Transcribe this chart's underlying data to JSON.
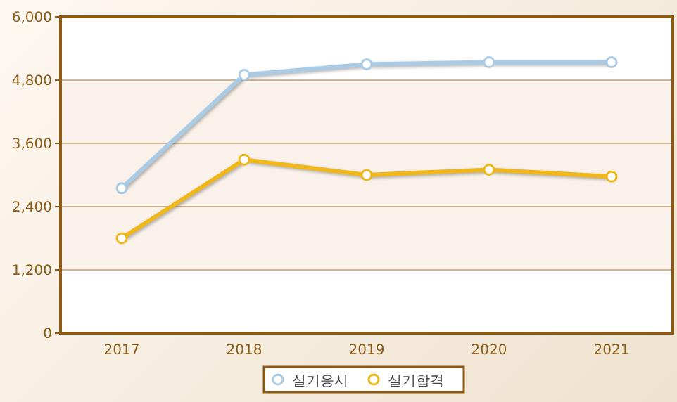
{
  "chart_data": {
    "type": "line",
    "categories": [
      "2017",
      "2018",
      "2019",
      "2020",
      "2021"
    ],
    "series": [
      {
        "name": "실기응시",
        "color": "#a9cbe6",
        "values": [
          2750,
          4900,
          5100,
          5140,
          5140
        ]
      },
      {
        "name": "실기합격",
        "color": "#f0b71a",
        "values": [
          1800,
          3290,
          3000,
          3100,
          2970
        ]
      }
    ],
    "ylim": [
      0,
      6000
    ],
    "yticks": [
      {
        "value": 0,
        "label": "0"
      },
      {
        "value": 1200,
        "label": "1,200"
      },
      {
        "value": 2400,
        "label": "2,400"
      },
      {
        "value": 3600,
        "label": "3,600"
      },
      {
        "value": 4800,
        "label": "4,800"
      },
      {
        "value": 6000,
        "label": "6,000"
      }
    ],
    "bands": [
      {
        "axis": "y",
        "from": 1200,
        "to": 4800,
        "color": "#f9f1ea"
      }
    ],
    "grid": "y",
    "legend": "bottom",
    "marker": "circle"
  }
}
